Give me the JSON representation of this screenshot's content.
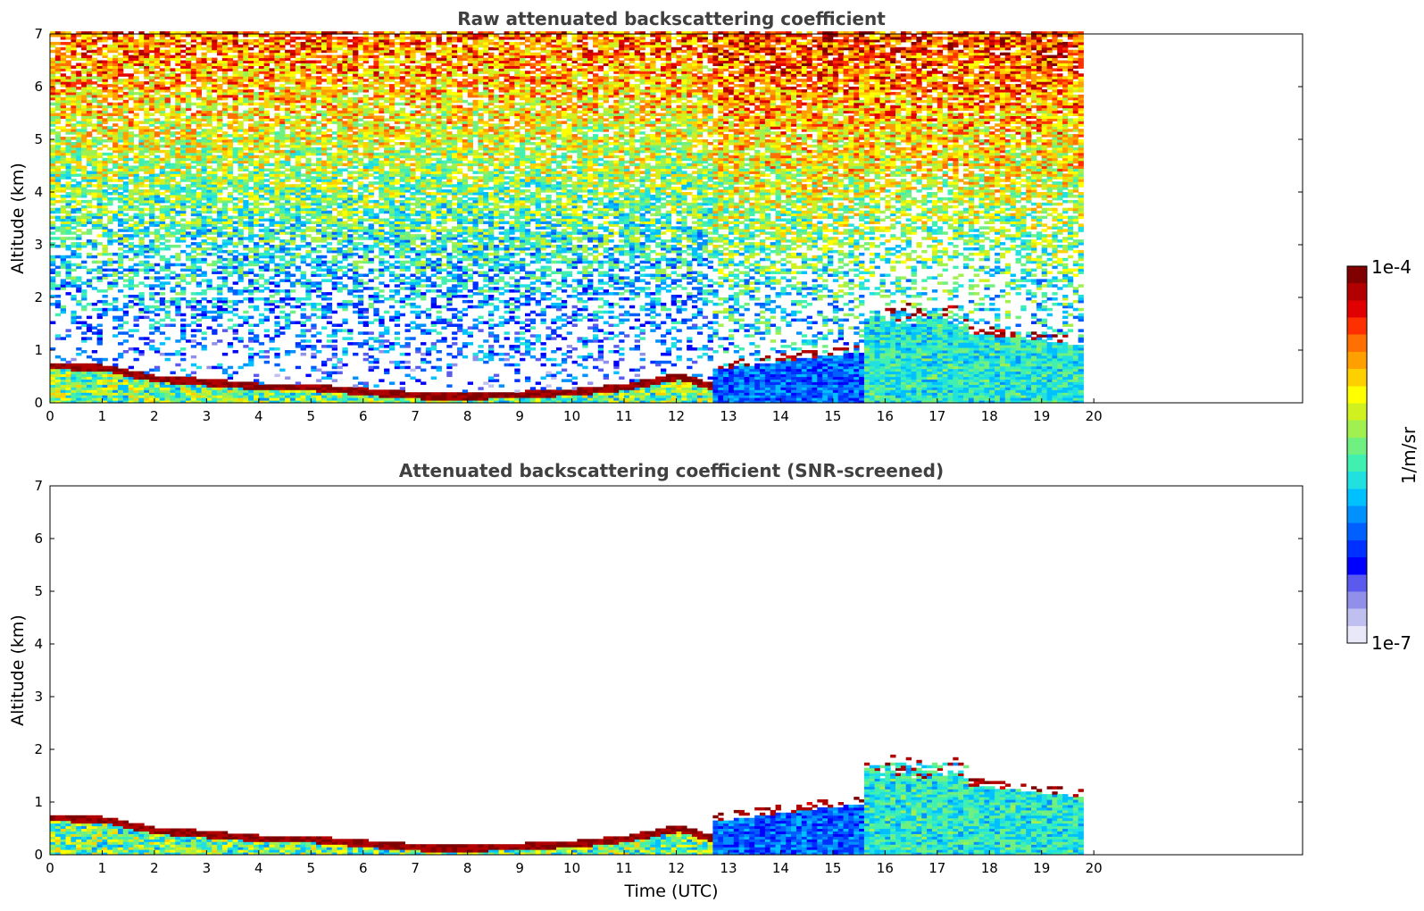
{
  "chart_data": [
    {
      "type": "heatmap",
      "title": "Raw attenuated backscattering coefficient",
      "xlabel": "",
      "ylabel": "Altitude (km)",
      "xlim": [
        0,
        24
      ],
      "ylim": [
        0,
        7
      ],
      "xticks": [
        "0",
        "1",
        "2",
        "3",
        "4",
        "5",
        "6",
        "7",
        "8",
        "9",
        "10",
        "11",
        "12",
        "13",
        "14",
        "15",
        "16",
        "17",
        "18",
        "19",
        "20"
      ],
      "yticks": [
        "0",
        "1",
        "2",
        "3",
        "4",
        "5",
        "6",
        "7"
      ],
      "data_end_time": 19.8,
      "boundary_layer_top_km": [
        {
          "t": 0,
          "h": 0.7
        },
        {
          "t": 1,
          "h": 0.65
        },
        {
          "t": 2,
          "h": 0.45
        },
        {
          "t": 3,
          "h": 0.38
        },
        {
          "t": 4,
          "h": 0.3
        },
        {
          "t": 5,
          "h": 0.28
        },
        {
          "t": 6,
          "h": 0.2
        },
        {
          "t": 7,
          "h": 0.13
        },
        {
          "t": 8,
          "h": 0.12
        },
        {
          "t": 9,
          "h": 0.15
        },
        {
          "t": 10,
          "h": 0.2
        },
        {
          "t": 11,
          "h": 0.3
        },
        {
          "t": 12,
          "h": 0.5
        },
        {
          "t": 12.6,
          "h": 0.3
        }
      ],
      "screened": false
    },
    {
      "type": "heatmap",
      "title": "Attenuated backscattering coefficient (SNR-screened)",
      "xlabel": "Time (UTC)",
      "ylabel": "Altitude (km)",
      "xlim": [
        0,
        24
      ],
      "ylim": [
        0,
        7
      ],
      "xticks": [
        "0",
        "1",
        "2",
        "3",
        "4",
        "5",
        "6",
        "7",
        "8",
        "9",
        "10",
        "11",
        "12",
        "13",
        "14",
        "15",
        "16",
        "17",
        "18",
        "19",
        "20"
      ],
      "yticks": [
        "0",
        "1",
        "2",
        "3",
        "4",
        "5",
        "6",
        "7"
      ],
      "data_end_time": 19.8,
      "screened": true
    }
  ],
  "colorbar": {
    "max_label": "1e-4",
    "min_label": "1e-7",
    "unit_label": "1/m/sr",
    "colors": [
      "#e8e8f8",
      "#c0c0f0",
      "#9090ea",
      "#5a5aee",
      "#0000ff",
      "#0030ff",
      "#0060ff",
      "#0090ff",
      "#00c0ff",
      "#20e0e0",
      "#40f0b0",
      "#70f080",
      "#a0f050",
      "#d0f020",
      "#ffff00",
      "#ffd000",
      "#ffa000",
      "#ff7000",
      "#ff3000",
      "#e00000",
      "#b00000",
      "#800000"
    ]
  }
}
